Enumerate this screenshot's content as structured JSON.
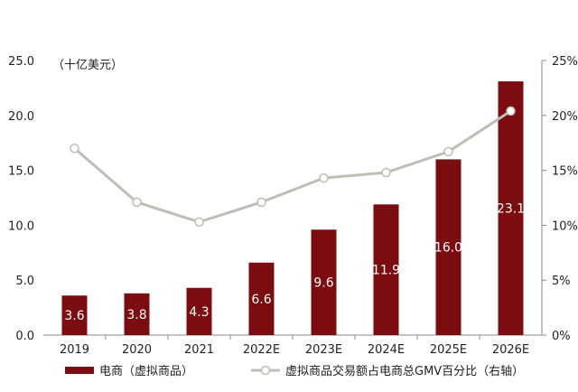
{
  "chart_data": {
    "type": "bar",
    "y_unit_label": "（十亿美元）",
    "categories": [
      "2019",
      "2020",
      "2021",
      "2022E",
      "2023E",
      "2024E",
      "2025E",
      "2026E"
    ],
    "series": [
      {
        "name": "电商（虚拟商品）",
        "type": "bar",
        "axis": "left",
        "values": [
          3.6,
          3.8,
          4.3,
          6.6,
          9.6,
          11.9,
          16.0,
          23.1
        ],
        "value_labels": [
          "3.6",
          "3.8",
          "4.3",
          "6.6",
          "9.6",
          "11.9",
          "16.0",
          "23.1"
        ],
        "color": "#7b0c10"
      },
      {
        "name": "虚拟商品交易额占电商总GMV百分比（右轴）",
        "type": "line",
        "axis": "right",
        "values": [
          17.0,
          12.1,
          10.3,
          12.1,
          14.3,
          14.8,
          16.7,
          20.4
        ],
        "color": "#bcbfb4"
      }
    ],
    "left_axis": {
      "ylim": [
        0,
        25
      ],
      "ticks": [
        "0.0",
        "5.0",
        "10.0",
        "15.0",
        "20.0",
        "25.0"
      ]
    },
    "right_axis": {
      "ylim": [
        0,
        25
      ],
      "ticks": [
        "0%",
        "5%",
        "10%",
        "15%",
        "20%",
        "25%"
      ]
    },
    "grid": false,
    "legend_position": "bottom"
  }
}
